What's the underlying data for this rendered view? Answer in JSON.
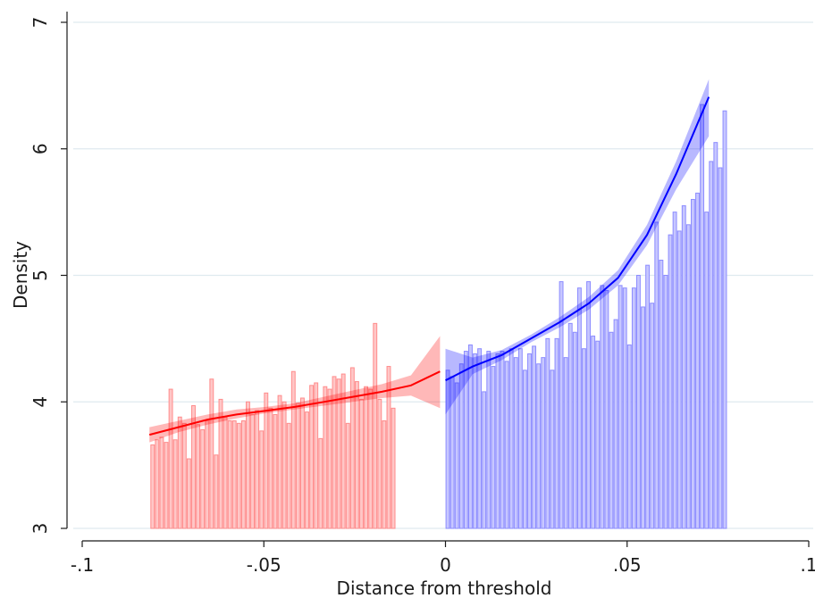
{
  "chart_data": {
    "type": "bar",
    "title": "",
    "xlabel": "Distance from threshold",
    "ylabel": "Density",
    "xlim": [
      -0.1,
      0.1
    ],
    "ylim": [
      3,
      7
    ],
    "x_ticks": [
      -0.1,
      -0.05,
      0,
      0.05,
      0.1
    ],
    "x_tick_labels": [
      "-.1",
      "-.05",
      "0",
      ".05",
      ".1"
    ],
    "y_ticks": [
      3,
      4,
      5,
      6,
      7
    ],
    "y_tick_labels": [
      "3",
      "4",
      "5",
      "6",
      "7"
    ],
    "grid": "horizontal",
    "legend": "none",
    "bin_width": 0.00125,
    "series": [
      {
        "color": "#ff0000",
        "bars": {
          "x_start": -0.08125,
          "values": [
            3.66,
            3.7,
            3.72,
            3.68,
            4.1,
            3.7,
            3.88,
            3.83,
            3.55,
            3.97,
            3.82,
            3.78,
            3.85,
            4.18,
            3.58,
            4.02,
            3.88,
            3.85,
            3.85,
            3.83,
            3.85,
            4.0,
            3.9,
            3.93,
            3.77,
            4.07,
            3.95,
            3.9,
            4.05,
            4.0,
            3.83,
            4.24,
            3.99,
            4.03,
            3.92,
            4.13,
            4.15,
            3.71,
            4.12,
            4.1,
            4.2,
            4.18,
            4.22,
            3.83,
            4.27,
            4.16,
            4.02,
            4.12,
            4.1,
            4.62,
            4.02,
            3.85,
            4.28,
            3.95
          ]
        },
        "fit": {
          "x": [
            -0.0815,
            -0.0735,
            -0.0655,
            -0.0575,
            -0.0495,
            -0.0415,
            -0.0335,
            -0.0255,
            -0.0175,
            -0.0095,
            -0.0015
          ],
          "y": [
            3.74,
            3.8,
            3.86,
            3.9,
            3.93,
            3.96,
            4.0,
            4.04,
            4.08,
            4.13,
            4.24
          ],
          "ci_low": [
            3.68,
            3.76,
            3.82,
            3.87,
            3.91,
            3.94,
            3.97,
            4.0,
            4.03,
            4.05,
            3.95
          ],
          "ci_high": [
            3.8,
            3.85,
            3.9,
            3.94,
            3.96,
            3.99,
            4.04,
            4.09,
            4.14,
            4.21,
            4.52
          ]
        }
      },
      {
        "color": "#0000ff",
        "bars": {
          "x_start": 0.0,
          "values": [
            4.25,
            4.2,
            4.15,
            4.3,
            4.4,
            4.45,
            4.38,
            4.42,
            4.08,
            4.4,
            4.28,
            4.38,
            4.4,
            4.32,
            4.42,
            4.35,
            4.42,
            4.25,
            4.38,
            4.44,
            4.3,
            4.35,
            4.5,
            4.25,
            4.5,
            4.95,
            4.35,
            4.62,
            4.55,
            4.9,
            4.42,
            4.95,
            4.52,
            4.48,
            4.92,
            4.88,
            4.55,
            4.65,
            4.92,
            4.9,
            4.45,
            4.9,
            5.0,
            4.75,
            5.08,
            4.78,
            5.42,
            5.12,
            5.0,
            5.32,
            5.5,
            5.35,
            5.55,
            5.4,
            5.6,
            5.65,
            6.35,
            5.5,
            5.9,
            6.05,
            5.85,
            6.3
          ]
        },
        "fit": {
          "x": [
            0.0,
            0.0075,
            0.0155,
            0.0235,
            0.0315,
            0.0395,
            0.0475,
            0.0555,
            0.0635,
            0.0725
          ],
          "y": [
            4.17,
            4.28,
            4.37,
            4.5,
            4.63,
            4.78,
            4.98,
            5.32,
            5.8,
            6.41
          ],
          "ci_low": [
            3.9,
            4.22,
            4.33,
            4.47,
            4.59,
            4.73,
            4.92,
            5.24,
            5.68,
            6.1
          ],
          "ci_high": [
            4.42,
            4.35,
            4.41,
            4.53,
            4.67,
            4.83,
            5.04,
            5.4,
            5.9,
            6.55
          ]
        }
      }
    ]
  }
}
